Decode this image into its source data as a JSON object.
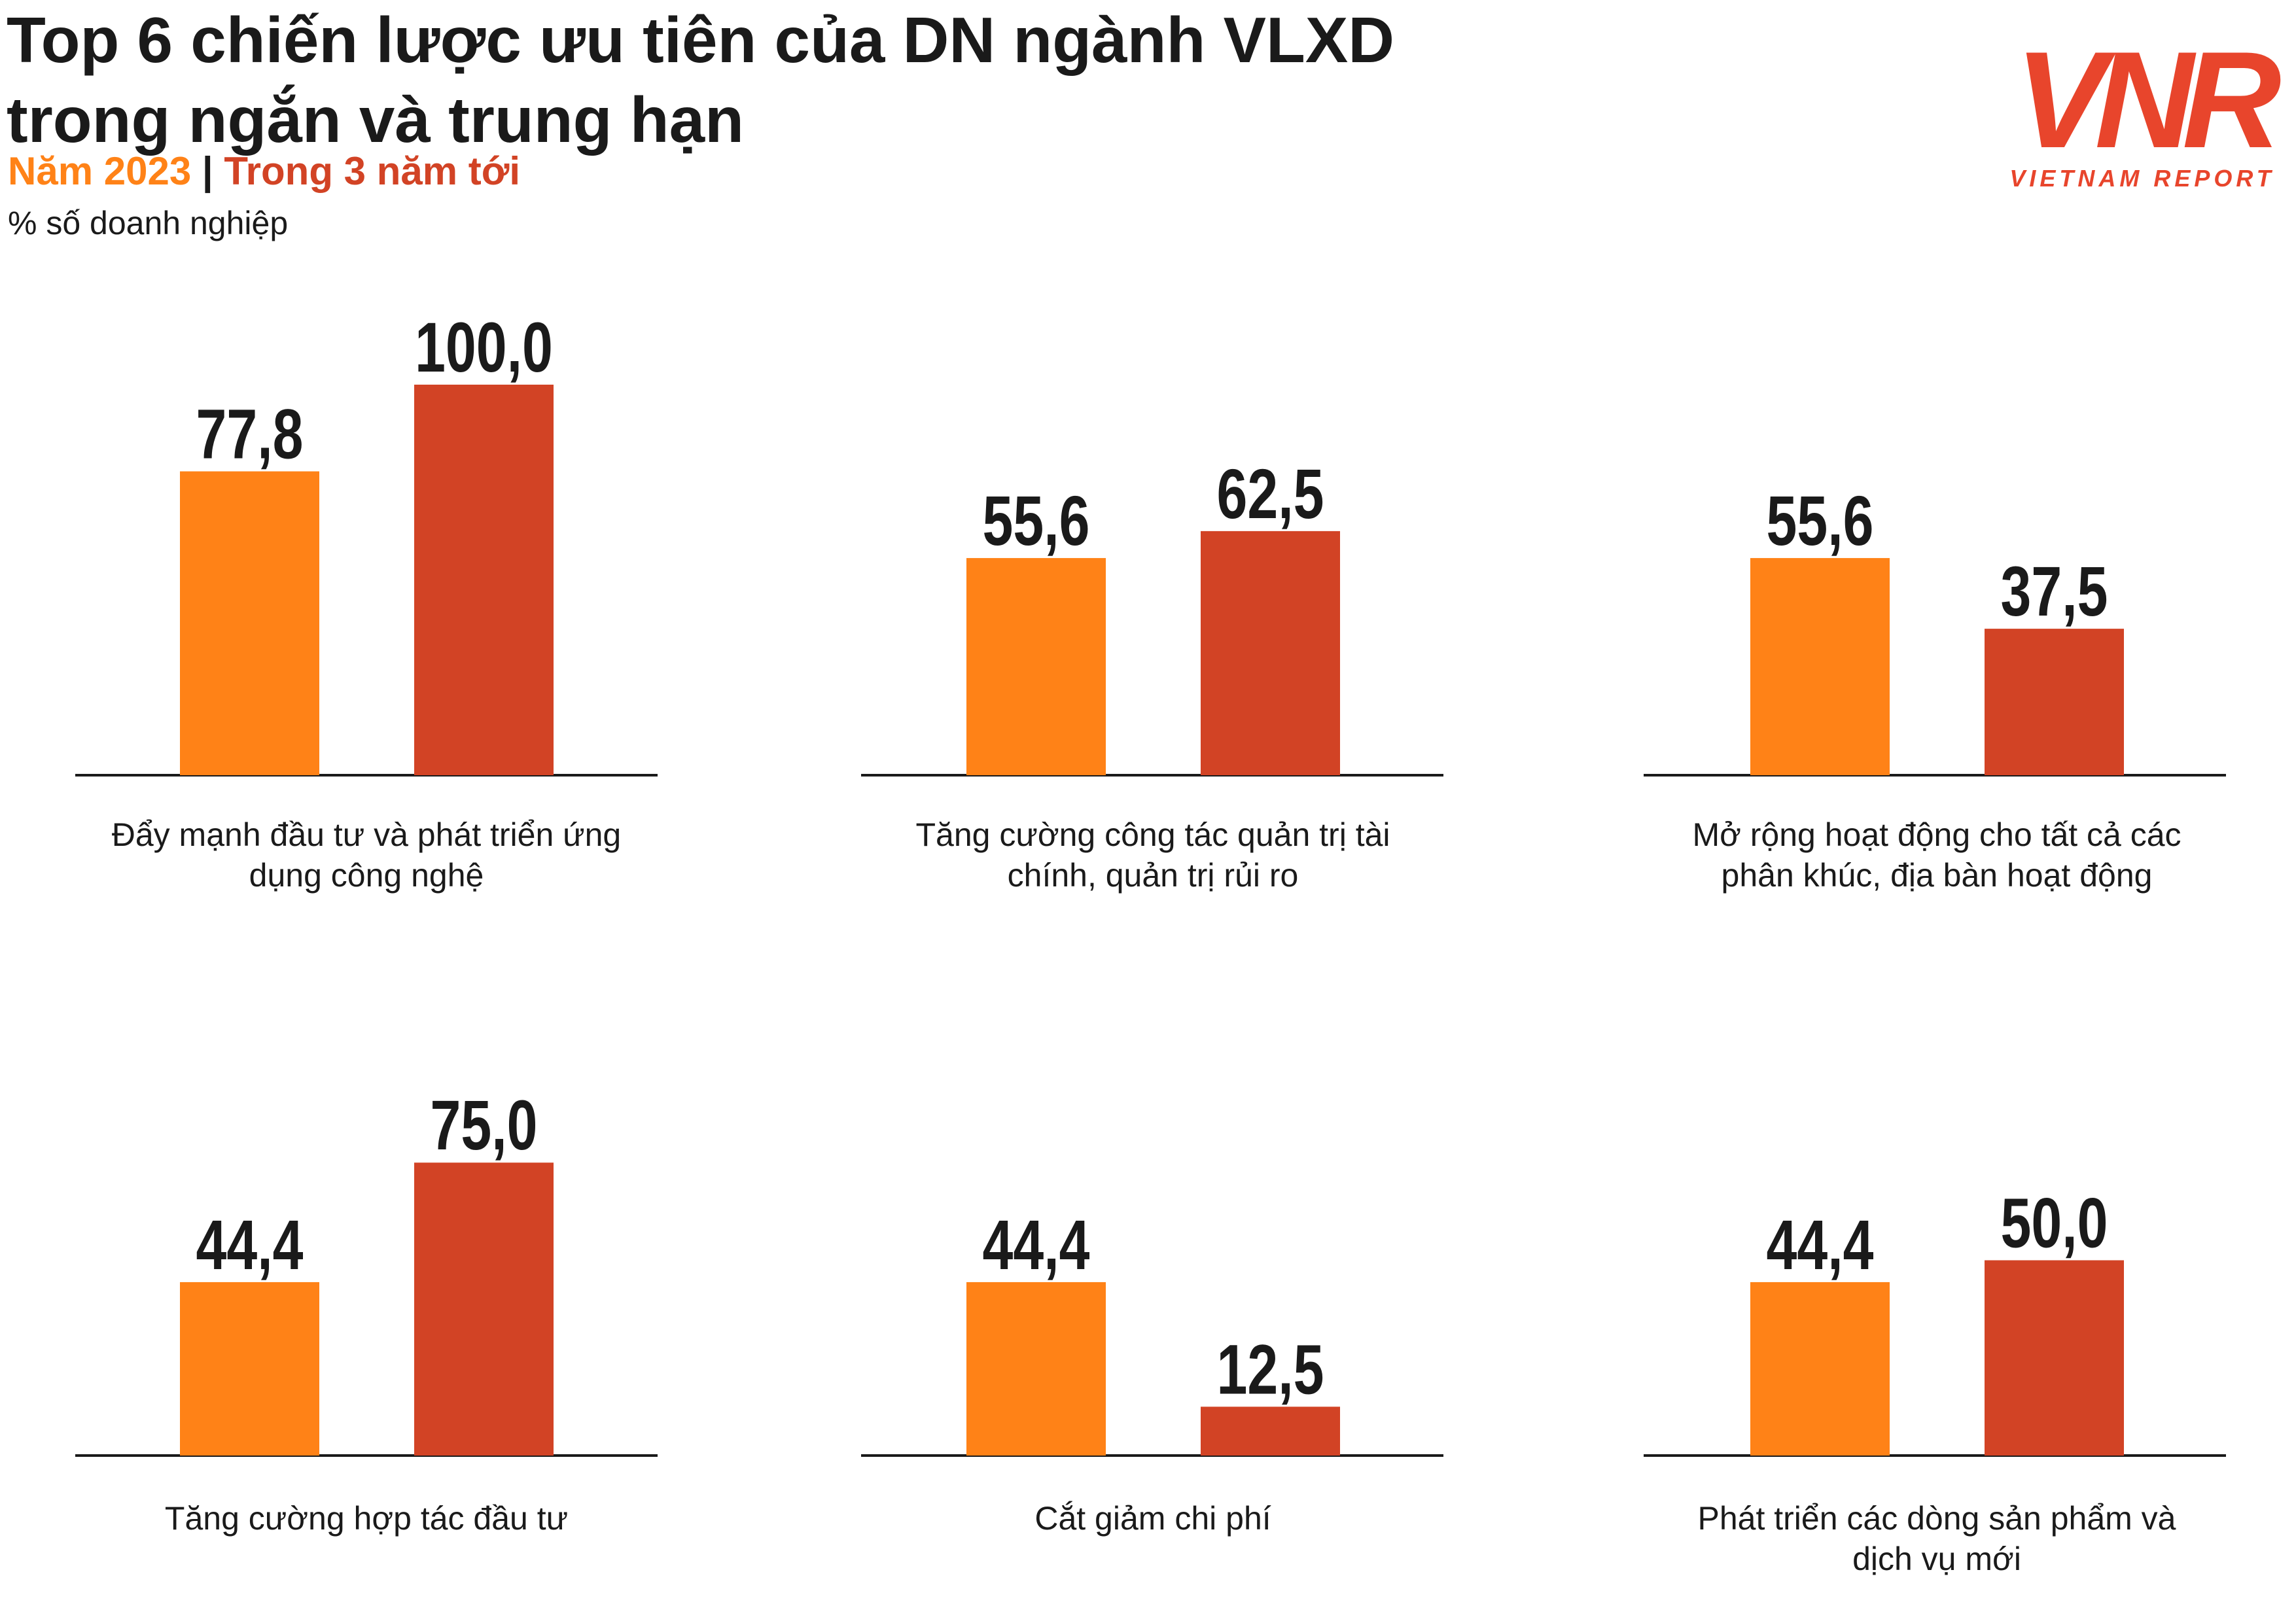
{
  "title": "Top 6 chiến lược ưu tiên của DN ngành VLXD trong ngắn và trung hạn",
  "subtitle_sep": "|",
  "unit": "% số doanh nghiệp",
  "logo": {
    "brand": "VNR",
    "tagline": "VIETNAM REPORT"
  },
  "colors": {
    "series_2023": "#FF8217",
    "series_next3": "#D24325",
    "axis": "#1a1a1a",
    "text": "#1a1a1a"
  },
  "chart_data": {
    "type": "bar",
    "series": [
      {
        "name": "Năm 2023",
        "values": [
          77.8,
          55.6,
          55.6,
          44.4,
          44.4,
          44.4
        ],
        "labels": [
          "77,8",
          "55,6",
          "55,6",
          "44,4",
          "44,4",
          "44,4"
        ]
      },
      {
        "name": "Trong 3 năm tới",
        "values": [
          100.0,
          62.5,
          37.5,
          75.0,
          12.5,
          50.0
        ],
        "labels": [
          "100,0",
          "62,5",
          "37,5",
          "75,0",
          "12,5",
          "50,0"
        ]
      }
    ],
    "categories": [
      {
        "line1": "Đẩy mạnh đầu tư và phát triển ứng",
        "line2": "dụng công nghệ"
      },
      {
        "line1": "Tăng cường công tác quản trị tài",
        "line2": "chính, quản trị rủi ro"
      },
      {
        "line1": "Mở rộng hoạt động cho tất cả các",
        "line2": "phân khúc, địa bàn hoạt động"
      },
      {
        "line1": "Tăng cường hợp tác đầu tư",
        "line2": ""
      },
      {
        "line1": "Cắt giảm chi phí",
        "line2": ""
      },
      {
        "line1": "Phát triển các dòng sản phẩm và",
        "line2": "dịch vụ mới"
      }
    ],
    "ylim": [
      0,
      100
    ],
    "legend": "top-left"
  }
}
